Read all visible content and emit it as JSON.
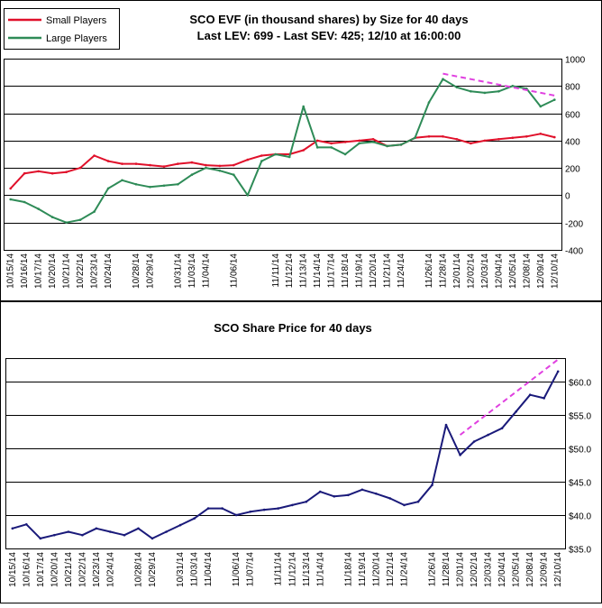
{
  "charts": [
    {
      "id": "evf",
      "type": "line",
      "title": "SCO EVF (in thousand shares) by Size for 40 days",
      "subtitle": "Last LEV: 699 - Last SEV: 425; 12/10 at 16:00:00",
      "ylim": [
        -400,
        1000
      ],
      "yticks": [
        -400,
        -200,
        0,
        200,
        400,
        600,
        800,
        1000
      ],
      "ytick_labels": [
        "-400",
        "-200",
        "0",
        "200",
        "400",
        "600",
        "800",
        "1000"
      ],
      "grid": "horizontal",
      "legend": "top-left",
      "dates": [
        "10/15/14",
        "10/16/14",
        "10/17/14",
        "10/20/14",
        "10/21/14",
        "10/22/14",
        "10/23/14",
        "10/24/14",
        "10/27/14",
        "10/28/14",
        "10/29/14",
        "10/30/14",
        "10/31/14",
        "11/03/14",
        "11/04/14",
        "11/05/14",
        "11/06/14",
        "11/07/14",
        "11/10/14",
        "11/11/14",
        "11/12/14",
        "11/13/14",
        "11/14/14",
        "11/17/14",
        "11/18/14",
        "11/19/14",
        "11/20/14",
        "11/21/14",
        "11/24/14",
        "11/25/14",
        "11/26/14",
        "11/28/14",
        "12/01/14",
        "12/02/14",
        "12/03/14",
        "12/04/14",
        "12/05/14",
        "12/08/14",
        "12/09/14",
        "12/10/14"
      ],
      "shown_labels": [
        "10/15/14",
        "10/16/14",
        "10/17/14",
        "10/20/14",
        "10/21/14",
        "10/22/14",
        "10/23/14",
        "10/24/14",
        "10/28/14",
        "10/29/14",
        "10/31/14",
        "11/03/14",
        "11/04/14",
        "11/06/14",
        "11/11/14",
        "11/12/14",
        "11/13/14",
        "11/14/14",
        "11/17/14",
        "11/18/14",
        "11/19/14",
        "11/20/14",
        "11/21/14",
        "11/24/14",
        "11/26/14",
        "11/28/14",
        "12/01/14",
        "12/02/14",
        "12/03/14",
        "12/04/14",
        "12/05/14",
        "12/08/14",
        "12/09/14",
        "12/10/14"
      ],
      "series": [
        {
          "name": "Small Players",
          "color": "#e0102a",
          "values": [
            50,
            160,
            175,
            160,
            170,
            200,
            290,
            250,
            230,
            230,
            220,
            210,
            230,
            240,
            220,
            215,
            220,
            260,
            290,
            300,
            300,
            330,
            400,
            380,
            390,
            400,
            410,
            360,
            370,
            420,
            430,
            430,
            410,
            380,
            400,
            410,
            420,
            430,
            450,
            425
          ]
        },
        {
          "name": "Large Players",
          "color": "#2e8b57",
          "values": [
            -30,
            -50,
            -100,
            -160,
            -200,
            -180,
            -120,
            50,
            110,
            80,
            60,
            70,
            80,
            150,
            200,
            180,
            150,
            0,
            250,
            300,
            280,
            650,
            350,
            350,
            300,
            380,
            390,
            360,
            370,
            420,
            680,
            850,
            790,
            760,
            750,
            760,
            800,
            780,
            650,
            699
          ]
        }
      ],
      "trendline": {
        "color": "#e040e0",
        "from": [
          "11/28/14",
          890
        ],
        "to": [
          "12/10/14",
          730
        ]
      }
    },
    {
      "id": "price",
      "type": "line",
      "title": "SCO Share Price for 40 days",
      "ylim": [
        35,
        63.5
      ],
      "yticks": [
        35,
        40,
        45,
        50,
        55,
        60
      ],
      "ytick_labels": [
        "$35.0",
        "$40.0",
        "$45.0",
        "$50.0",
        "$55.0",
        "$60.0"
      ],
      "ytick_side": "right",
      "grid": "horizontal",
      "dates": [
        "10/15/14",
        "10/16/14",
        "10/17/14",
        "10/20/14",
        "10/21/14",
        "10/22/14",
        "10/23/14",
        "10/24/14",
        "10/27/14",
        "10/28/14",
        "10/29/14",
        "10/30/14",
        "10/31/14",
        "11/03/14",
        "11/04/14",
        "11/05/14",
        "11/06/14",
        "11/07/14",
        "11/10/14",
        "11/11/14",
        "11/12/14",
        "11/13/14",
        "11/14/14",
        "11/17/14",
        "11/18/14",
        "11/19/14",
        "11/20/14",
        "11/21/14",
        "11/24/14",
        "11/25/14",
        "11/26/14",
        "11/28/14",
        "12/01/14",
        "12/02/14",
        "12/03/14",
        "12/04/14",
        "12/05/14",
        "12/08/14",
        "12/09/14",
        "12/10/14"
      ],
      "shown_labels": [
        "10/15/14",
        "10/16/14",
        "10/17/14",
        "10/20/14",
        "10/21/14",
        "10/22/14",
        "10/23/14",
        "10/24/14",
        "10/28/14",
        "10/29/14",
        "10/31/14",
        "11/03/14",
        "11/04/14",
        "11/06/14",
        "11/07/14",
        "11/11/14",
        "11/12/14",
        "11/13/14",
        "11/14/14",
        "11/18/14",
        "11/19/14",
        "11/20/14",
        "11/21/14",
        "11/24/14",
        "11/26/14",
        "11/28/14",
        "12/01/14",
        "12/02/14",
        "12/03/14",
        "12/04/14",
        "12/05/14",
        "12/08/14",
        "12/09/14",
        "12/10/14"
      ],
      "series": [
        {
          "color": "#1a1a7a",
          "values": [
            38.0,
            38.6,
            36.5,
            37.0,
            37.5,
            37.0,
            38.0,
            37.5,
            37.0,
            38.0,
            36.5,
            37.5,
            38.5,
            39.5,
            41.0,
            41.0,
            40.0,
            40.5,
            40.8,
            41.0,
            41.5,
            42.0,
            43.5,
            42.8,
            43.0,
            43.8,
            43.2,
            42.5,
            41.5,
            42.0,
            44.5,
            53.5,
            49.0,
            51.0,
            52.0,
            53.0,
            55.5,
            58.0,
            57.5,
            61.5
          ]
        }
      ],
      "trendline": {
        "color": "#e040e0",
        "from": [
          "12/01/14",
          52.0
        ],
        "to": [
          "12/10/14",
          63.3
        ]
      }
    }
  ]
}
